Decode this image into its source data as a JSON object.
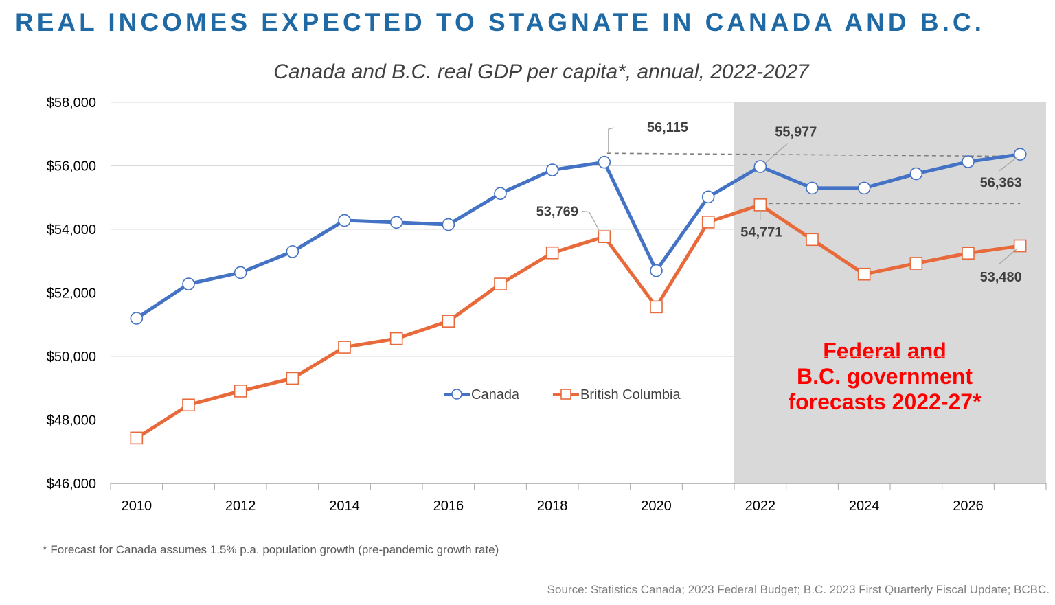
{
  "headline": "REAL INCOMES EXPECTED TO STAGNATE IN CANADA AND B.C.",
  "footnote": "* Forecast for Canada assumes 1.5% p.a. population growth (pre-pandemic growth rate)",
  "source": "Source:  Statistics Canada; 2023 Federal Budget; B.C. 2023 First Quarterly Fiscal Update; BCBC.",
  "colors": {
    "canada": "#4472c4",
    "bc": "#e8693a",
    "forecast_shade": "#d9d9d9",
    "forecast_text": "#ff0000",
    "headline": "#1f6aa5"
  },
  "chart_data": {
    "type": "line",
    "title": "Canada and B.C. real GDP per capita*, annual, 2022-2027",
    "x": [
      2010,
      2011,
      2012,
      2013,
      2014,
      2015,
      2016,
      2017,
      2018,
      2019,
      2020,
      2021,
      2022,
      2023,
      2024,
      2025,
      2026,
      2027
    ],
    "x_tick_labels": [
      "2010",
      "2012",
      "2014",
      "2016",
      "2018",
      "2020",
      "2022",
      "2024",
      "2026"
    ],
    "y_tick_labels": [
      "$46,000",
      "$48,000",
      "$50,000",
      "$52,000",
      "$54,000",
      "$56,000",
      "$58,000"
    ],
    "ylim": [
      46000,
      58000
    ],
    "xlim": [
      2009.5,
      2027.5
    ],
    "grid": "horizontal",
    "legend_placement": "center",
    "series": [
      {
        "name": "Canada",
        "marker": "circle",
        "values": [
          51200,
          52280,
          52640,
          53300,
          54280,
          54220,
          54150,
          55130,
          55870,
          56115,
          52700,
          55020,
          55977,
          55300,
          55300,
          55750,
          56130,
          56363
        ]
      },
      {
        "name": "British Columbia",
        "marker": "square",
        "values": [
          47430,
          48470,
          48910,
          49310,
          50290,
          50560,
          51110,
          52280,
          53260,
          53769,
          51560,
          54230,
          54771,
          53680,
          52590,
          52930,
          53250,
          53480
        ]
      }
    ],
    "forecast_region": {
      "from_year": 2021.5,
      "to_year": 2027.5,
      "label_lines": [
        "Federal and",
        "B.C. government",
        "forecasts 2022-27*"
      ]
    },
    "annotations": [
      {
        "text": "56,115",
        "series": "Canada",
        "year": 2019
      },
      {
        "text": "55,977",
        "series": "Canada",
        "year": 2022
      },
      {
        "text": "56,363",
        "series": "Canada",
        "year": 2027
      },
      {
        "text": "53,769",
        "series": "British Columbia",
        "year": 2019
      },
      {
        "text": "54,771",
        "series": "British Columbia",
        "year": 2022
      },
      {
        "text": "53,480",
        "series": "British Columbia",
        "year": 2027
      }
    ]
  }
}
